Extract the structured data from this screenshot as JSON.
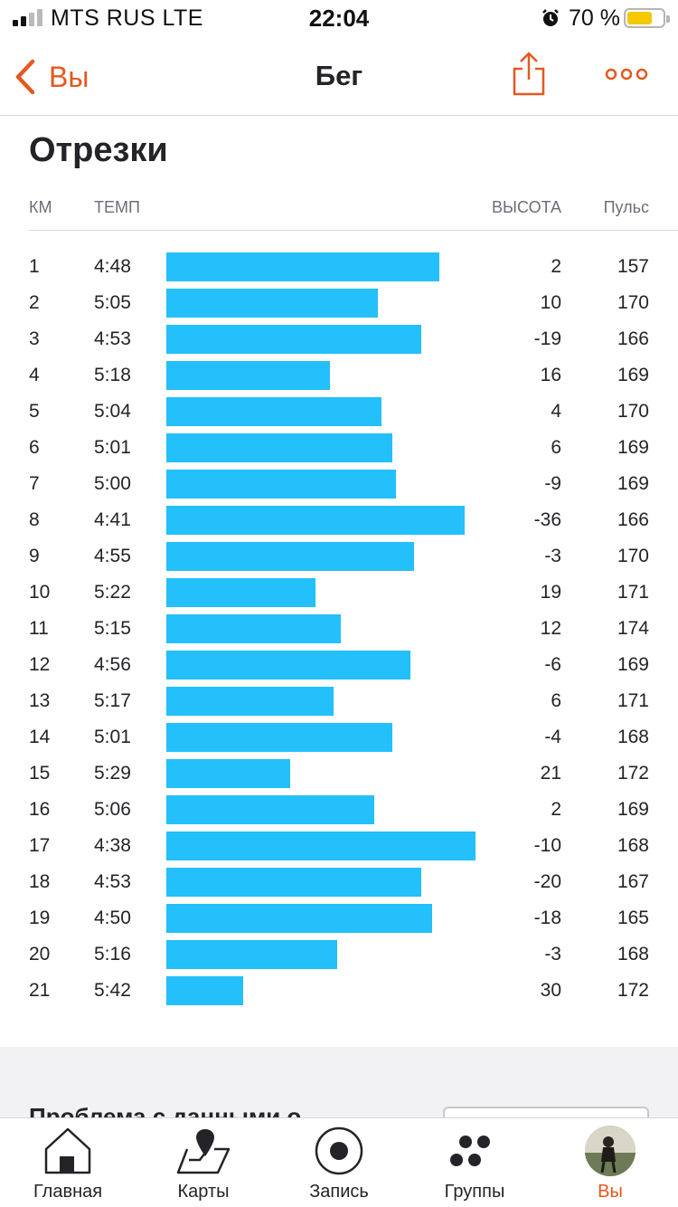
{
  "status_bar": {
    "carrier": "MTS RUS  LTE",
    "time": "22:04",
    "battery_percent": "70 %",
    "battery_level": 0.7,
    "battery_color": "#f5c800",
    "alarm_icon": "alarm-clock-icon"
  },
  "nav": {
    "back_label": "Вы",
    "title": "Бег",
    "share_icon": "share-icon",
    "more_icon": "more-dots-icon",
    "accent_color": "#e4591f"
  },
  "splits": {
    "title": "Отрезки",
    "headers": {
      "km": "КМ",
      "pace": "ТЕМП",
      "elevation": "ВЫСОТА",
      "heart_rate": "Пульс"
    },
    "bar_color": "#23c0fb",
    "rows": [
      {
        "km": "1",
        "pace": "4:48",
        "elevation": "2",
        "heart_rate": "157"
      },
      {
        "km": "2",
        "pace": "5:05",
        "elevation": "10",
        "heart_rate": "170"
      },
      {
        "km": "3",
        "pace": "4:53",
        "elevation": "-19",
        "heart_rate": "166"
      },
      {
        "km": "4",
        "pace": "5:18",
        "elevation": "16",
        "heart_rate": "169"
      },
      {
        "km": "5",
        "pace": "5:04",
        "elevation": "4",
        "heart_rate": "170"
      },
      {
        "km": "6",
        "pace": "5:01",
        "elevation": "6",
        "heart_rate": "169"
      },
      {
        "km": "7",
        "pace": "5:00",
        "elevation": "-9",
        "heart_rate": "169"
      },
      {
        "km": "8",
        "pace": "4:41",
        "elevation": "-36",
        "heart_rate": "166"
      },
      {
        "km": "9",
        "pace": "4:55",
        "elevation": "-3",
        "heart_rate": "170"
      },
      {
        "km": "10",
        "pace": "5:22",
        "elevation": "19",
        "heart_rate": "171"
      },
      {
        "km": "11",
        "pace": "5:15",
        "elevation": "12",
        "heart_rate": "174"
      },
      {
        "km": "12",
        "pace": "4:56",
        "elevation": "-6",
        "heart_rate": "169"
      },
      {
        "km": "13",
        "pace": "5:17",
        "elevation": "6",
        "heart_rate": "171"
      },
      {
        "km": "14",
        "pace": "5:01",
        "elevation": "-4",
        "heart_rate": "168"
      },
      {
        "km": "15",
        "pace": "5:29",
        "elevation": "21",
        "heart_rate": "172"
      },
      {
        "km": "16",
        "pace": "5:06",
        "elevation": "2",
        "heart_rate": "169"
      },
      {
        "km": "17",
        "pace": "4:38",
        "elevation": "-10",
        "heart_rate": "168"
      },
      {
        "km": "18",
        "pace": "4:53",
        "elevation": "-20",
        "heart_rate": "167"
      },
      {
        "km": "19",
        "pace": "4:50",
        "elevation": "-18",
        "heart_rate": "165"
      },
      {
        "km": "20",
        "pace": "5:16",
        "elevation": "-3",
        "heart_rate": "168"
      },
      {
        "km": "21",
        "pace": "5:42",
        "elevation": "30",
        "heart_rate": "172"
      }
    ]
  },
  "below_fold": {
    "partial_text": "Проблема с данными о..."
  },
  "tab_bar": {
    "tabs": [
      {
        "label": "Главная",
        "icon": "home-icon",
        "active": false
      },
      {
        "label": "Карты",
        "icon": "map-icon",
        "active": false
      },
      {
        "label": "Запись",
        "icon": "record-icon",
        "active": false
      },
      {
        "label": "Группы",
        "icon": "groups-icon",
        "active": false
      },
      {
        "label": "Вы",
        "icon": "avatar",
        "active": true
      }
    ]
  }
}
